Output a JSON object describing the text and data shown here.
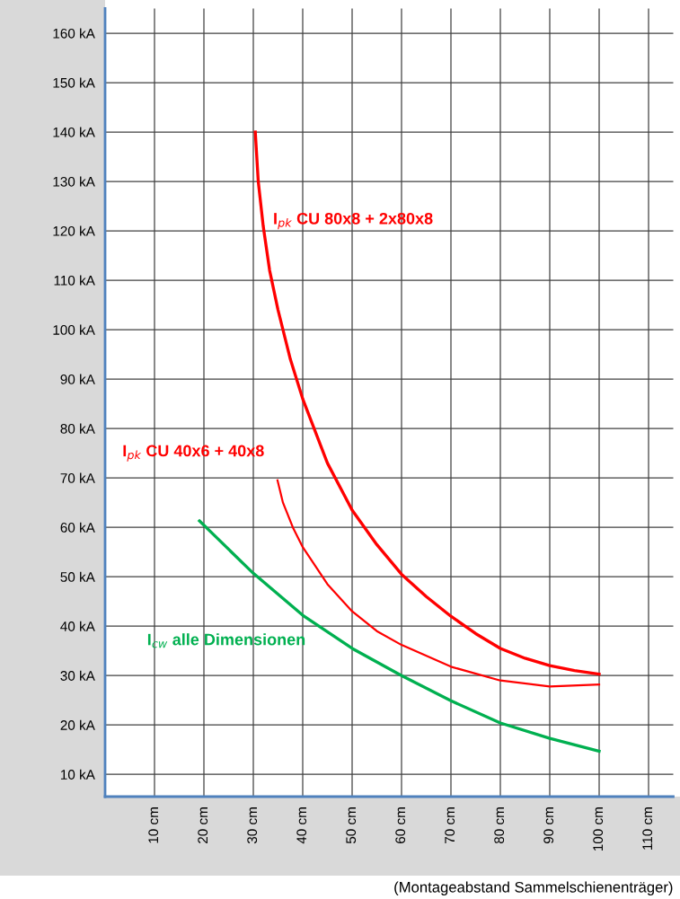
{
  "chart_data": {
    "type": "line",
    "xlabel": "(Montageabstand Sammelschienenträger)",
    "xlim": [
      0,
      115
    ],
    "ylim": [
      5.5,
      165
    ],
    "xticks": [
      {
        "value": 10,
        "label": "10 cm"
      },
      {
        "value": 20,
        "label": "20 cm"
      },
      {
        "value": 30,
        "label": "30 cm"
      },
      {
        "value": 40,
        "label": "40 cm"
      },
      {
        "value": 50,
        "label": "50 cm"
      },
      {
        "value": 60,
        "label": "60 cm"
      },
      {
        "value": 70,
        "label": "70 cm"
      },
      {
        "value": 80,
        "label": "80 cm"
      },
      {
        "value": 90,
        "label": "90 cm"
      },
      {
        "value": 100,
        "label": "100 cm"
      },
      {
        "value": 110,
        "label": "110 cm"
      }
    ],
    "yticks": [
      {
        "value": 10,
        "label": "10 kA"
      },
      {
        "value": 20,
        "label": "20 kA"
      },
      {
        "value": 30,
        "label": "30 kA"
      },
      {
        "value": 40,
        "label": "40 kA"
      },
      {
        "value": 50,
        "label": "50 kA"
      },
      {
        "value": 60,
        "label": "60 kA"
      },
      {
        "value": 70,
        "label": "70 kA"
      },
      {
        "value": 80,
        "label": "80 kA"
      },
      {
        "value": 90,
        "label": "90 kA"
      },
      {
        "value": 100,
        "label": "100 kA"
      },
      {
        "value": 110,
        "label": "110 kA"
      },
      {
        "value": 120,
        "label": "120 kA"
      },
      {
        "value": 130,
        "label": "130 kA"
      },
      {
        "value": 140,
        "label": "140 kA"
      },
      {
        "value": 150,
        "label": "150 kA"
      },
      {
        "value": 160,
        "label": "160 kA"
      }
    ],
    "grid": true,
    "marker": "none",
    "line_style": "solid",
    "series": [
      {
        "name": "I$_{pk}$ CU 80x8 + 2x80x8",
        "color": "#ff0000",
        "x": [
          30.4,
          31,
          32,
          33.3,
          35,
          37.5,
          40,
          45,
          50,
          55,
          60,
          65,
          70,
          75,
          80,
          85,
          90,
          95,
          100
        ],
        "values": [
          140,
          130,
          121,
          112,
          104,
          94,
          86,
          73,
          63.5,
          56.5,
          50.5,
          46,
          42,
          38.5,
          35.5,
          33.5,
          32,
          31,
          30.3
        ]
      },
      {
        "name": "I$_{pk}$ CU 40x6 + 40x8",
        "color": "#ff0000",
        "x": [
          34.9,
          36,
          38,
          40,
          45,
          50,
          55,
          60,
          70,
          80,
          90,
          100
        ],
        "values": [
          69.5,
          65,
          60,
          56,
          48.5,
          43,
          39,
          36.2,
          31.8,
          29,
          27.8,
          28.2
        ]
      },
      {
        "name": "I$_{cw}$ alle Dimensionen",
        "color": "#00b050",
        "x": [
          19.1,
          30,
          40,
          50,
          60,
          70,
          80,
          90,
          100
        ],
        "values": [
          61.3,
          50.7,
          42.2,
          35.5,
          30,
          24.9,
          20.4,
          17.3,
          14.7
        ]
      }
    ]
  }
}
